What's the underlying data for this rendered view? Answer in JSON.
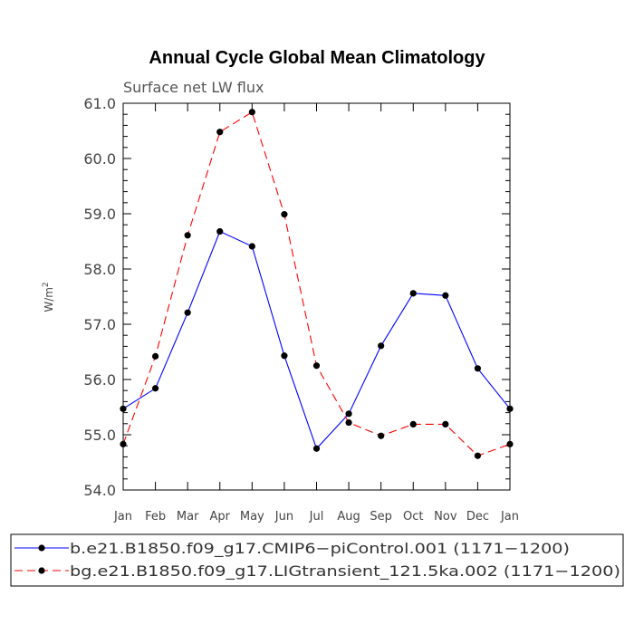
{
  "chart_data": {
    "type": "line",
    "title": "Annual Cycle Global Mean Climatology",
    "subtitle": "Surface net LW flux",
    "ylabel_base": "W/m",
    "ylabel_exp": "2",
    "xlabel": "",
    "ylim": [
      54.0,
      61.0
    ],
    "yticks": [
      "54.0",
      "55.0",
      "56.0",
      "57.0",
      "58.0",
      "59.0",
      "60.0",
      "61.0"
    ],
    "categories": [
      "Jan",
      "Feb",
      "Mar",
      "Apr",
      "May",
      "Jun",
      "Jul",
      "Aug",
      "Sep",
      "Oct",
      "Nov",
      "Dec",
      "Jan"
    ],
    "series": [
      {
        "name": "b.e21.B1850.f09_g17.CMIP6−piControl.001 (1171−1200)",
        "color": "#0000ff",
        "dash": "solid",
        "values": [
          55.47,
          55.84,
          57.21,
          58.68,
          58.41,
          56.43,
          54.75,
          55.38,
          56.61,
          57.56,
          57.52,
          56.2,
          55.47
        ]
      },
      {
        "name": "bg.e21.B1850.f09_g17.LIGtransient_121.5ka.002 (1171−1200)",
        "color": "#ff0000",
        "dash": "dashed",
        "values": [
          54.83,
          56.42,
          58.61,
          60.48,
          60.84,
          58.99,
          56.25,
          55.22,
          54.98,
          55.19,
          55.19,
          54.62,
          54.83
        ]
      }
    ]
  }
}
